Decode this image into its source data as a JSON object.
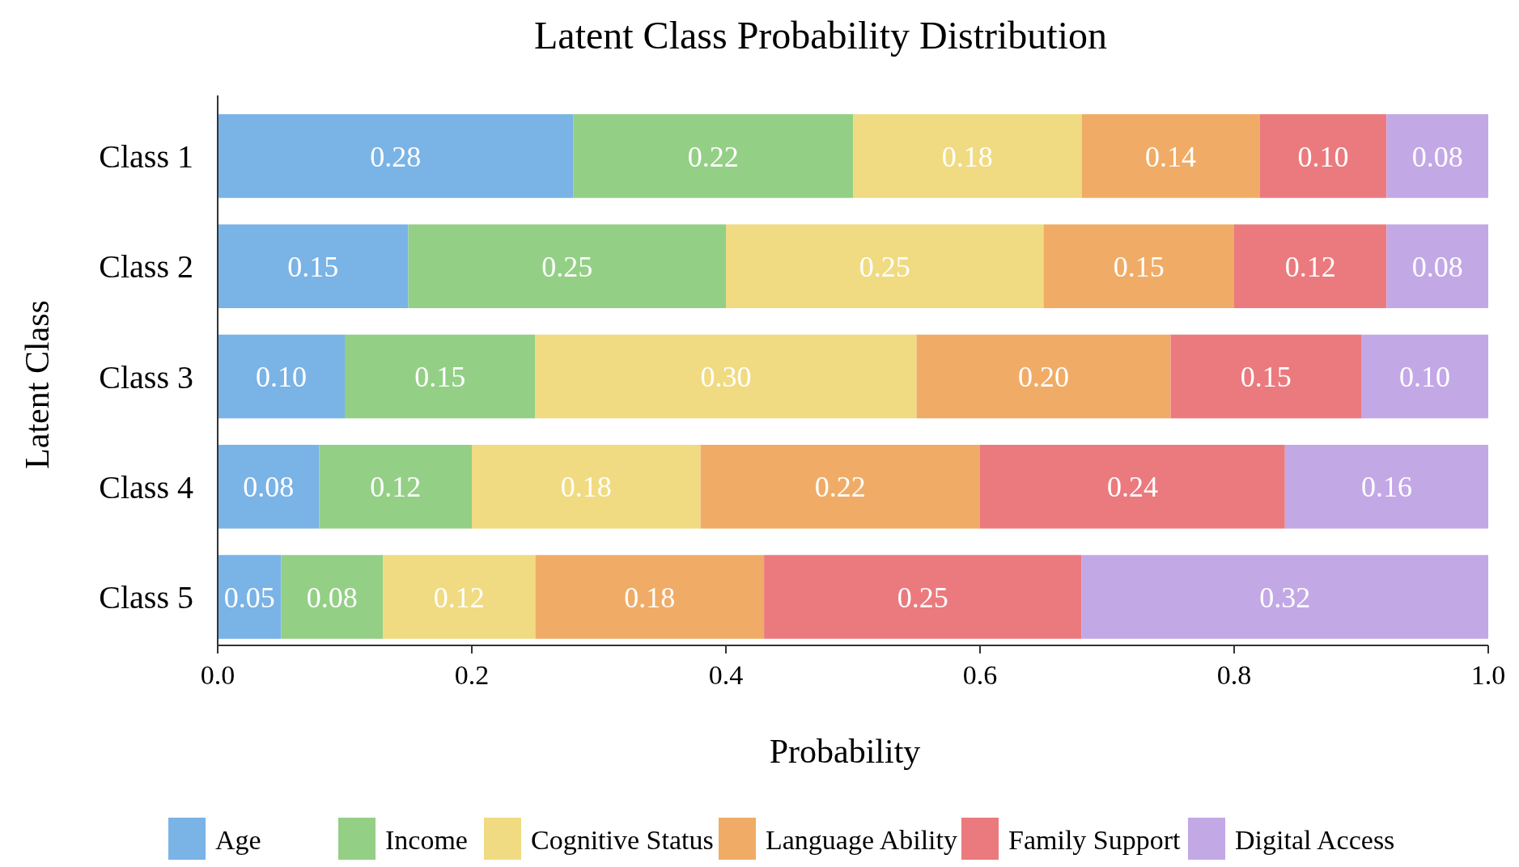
{
  "chart_data": {
    "type": "bar",
    "orientation": "horizontal",
    "stacked": true,
    "title": "Latent Class Probability Distribution",
    "xlabel": "Probability",
    "ylabel": "Latent Class",
    "categories": [
      "Class 1",
      "Class 2",
      "Class 3",
      "Class 4",
      "Class 5"
    ],
    "series": [
      {
        "name": "Age",
        "color": "#7ab3e6",
        "values": [
          0.28,
          0.15,
          0.1,
          0.08,
          0.05
        ],
        "value_labels": [
          "0.28",
          "0.15",
          "0.10",
          "0.08",
          "0.05"
        ]
      },
      {
        "name": "Income",
        "color": "#94cf86",
        "values": [
          0.22,
          0.25,
          0.15,
          0.12,
          0.08
        ],
        "value_labels": [
          "0.22",
          "0.25",
          "0.15",
          "0.12",
          "0.08"
        ]
      },
      {
        "name": "Cognitive Status",
        "color": "#f0db82",
        "values": [
          0.18,
          0.25,
          0.3,
          0.18,
          0.12
        ],
        "value_labels": [
          "0.18",
          "0.25",
          "0.30",
          "0.18",
          "0.12"
        ]
      },
      {
        "name": "Language Ability",
        "color": "#f0ac66",
        "values": [
          0.14,
          0.15,
          0.2,
          0.22,
          0.18
        ],
        "value_labels": [
          "0.14",
          "0.15",
          "0.20",
          "0.22",
          "0.18"
        ]
      },
      {
        "name": "Family Support",
        "color": "#eb7a7e",
        "values": [
          0.1,
          0.12,
          0.15,
          0.24,
          0.25
        ],
        "value_labels": [
          "0.10",
          "0.12",
          "0.15",
          "0.24",
          "0.25"
        ]
      },
      {
        "name": "Digital Access",
        "color": "#c3a8e6",
        "values": [
          0.08,
          0.08,
          0.1,
          0.16,
          0.32
        ],
        "value_labels": [
          "0.08",
          "0.08",
          "0.10",
          "0.16",
          "0.32"
        ]
      }
    ],
    "xlim": [
      0,
      1
    ],
    "xticks": [
      {
        "value": 0,
        "label": "0.0"
      },
      0.2,
      0.4,
      0.6,
      0.8,
      {
        "value": 1,
        "label": "1.0"
      }
    ],
    "grid": false,
    "legend": "bottom"
  }
}
